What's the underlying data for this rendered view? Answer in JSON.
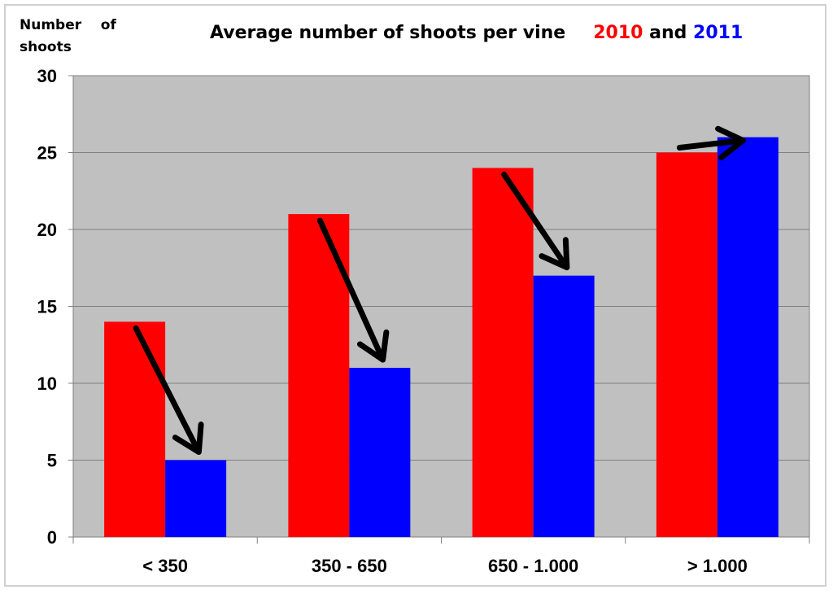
{
  "chart_data": {
    "type": "bar",
    "title": {
      "main": "Average number of shoots per vine",
      "series1_label": "2010",
      "connector": "and",
      "series2_label": "2011"
    },
    "ylabel": "Number    of\nshoots",
    "xlabel": "",
    "categories": [
      "< 350",
      "350 - 650",
      "650 - 1.000",
      "> 1.000"
    ],
    "series": [
      {
        "name": "2010",
        "color": "#ff0000",
        "values": [
          14,
          21,
          24,
          25
        ]
      },
      {
        "name": "2011",
        "color": "#0000ff",
        "values": [
          5,
          11,
          17,
          26
        ]
      }
    ],
    "ylim": [
      0,
      30
    ],
    "yticks": [
      0,
      5,
      10,
      15,
      20,
      25,
      30
    ],
    "grid": true,
    "legend": "none",
    "plot_background": "#c0c0c0",
    "annotations": "black arrows point from each 2010 bar to the corresponding 2011 bar"
  }
}
